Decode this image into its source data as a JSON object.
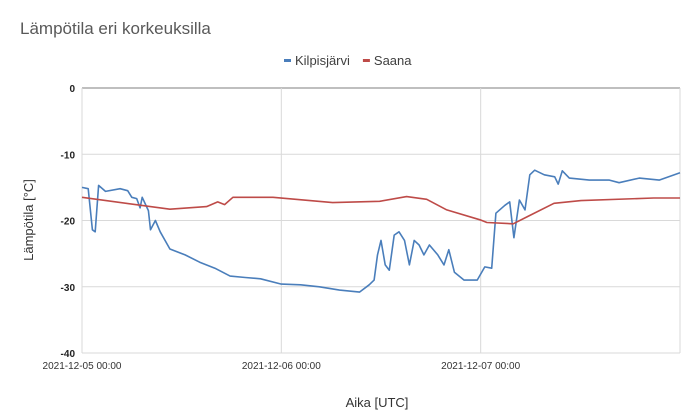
{
  "chart_data": {
    "type": "line",
    "title": "Lämpötila eri korkeuksilla",
    "xlabel": "Aika [UTC]",
    "ylabel": "Lämpötila [°C]",
    "ylim": [
      -40,
      0
    ],
    "yticks": [
      0,
      -10,
      -20,
      -30,
      -40
    ],
    "xlim": [
      "2021-12-05 00:00",
      "2021-12-08 00:00"
    ],
    "xticks": [
      "2021-12-05 00:00",
      "2021-12-06 00:00",
      "2021-12-07 00:00"
    ],
    "grid": true,
    "legend": "top-center",
    "series": [
      {
        "name": "Kilpisjärvi",
        "color": "#4a7ebb",
        "points": [
          [
            "2021-12-05 00:00",
            -15.0
          ],
          [
            "2021-12-05 00:45",
            -15.2
          ],
          [
            "2021-12-05 01:15",
            -21.4
          ],
          [
            "2021-12-05 01:35",
            -21.7
          ],
          [
            "2021-12-05 02:00",
            -14.7
          ],
          [
            "2021-12-05 02:50",
            -15.6
          ],
          [
            "2021-12-05 04:35",
            -15.2
          ],
          [
            "2021-12-05 05:30",
            -15.5
          ],
          [
            "2021-12-05 06:00",
            -16.5
          ],
          [
            "2021-12-05 06:35",
            -16.7
          ],
          [
            "2021-12-05 07:00",
            -18.1
          ],
          [
            "2021-12-05 07:15",
            -16.5
          ],
          [
            "2021-12-05 08:00",
            -18.5
          ],
          [
            "2021-12-05 08:15",
            -21.4
          ],
          [
            "2021-12-05 08:50",
            -20.0
          ],
          [
            "2021-12-05 09:25",
            -21.7
          ],
          [
            "2021-12-05 10:35",
            -24.3
          ],
          [
            "2021-12-05 12:25",
            -25.2
          ],
          [
            "2021-12-05 14:10",
            -26.3
          ],
          [
            "2021-12-05 16:00",
            -27.2
          ],
          [
            "2021-12-05 17:50",
            -28.4
          ],
          [
            "2021-12-05 19:40",
            -28.6
          ],
          [
            "2021-12-05 21:30",
            -28.8
          ],
          [
            "2021-12-06 00:00",
            -29.6
          ],
          [
            "2021-12-06 02:20",
            -29.7
          ],
          [
            "2021-12-06 04:35",
            -30.0
          ],
          [
            "2021-12-06 07:00",
            -30.5
          ],
          [
            "2021-12-06 09:25",
            -30.8
          ],
          [
            "2021-12-06 10:35",
            -29.7
          ],
          [
            "2021-12-06 11:10",
            -29.0
          ],
          [
            "2021-12-06 11:35",
            -25.2
          ],
          [
            "2021-12-06 12:00",
            -23.0
          ],
          [
            "2021-12-06 12:30",
            -26.7
          ],
          [
            "2021-12-06 13:00",
            -27.5
          ],
          [
            "2021-12-06 13:35",
            -22.2
          ],
          [
            "2021-12-06 14:10",
            -21.7
          ],
          [
            "2021-12-06 14:50",
            -23.0
          ],
          [
            "2021-12-06 15:25",
            -26.7
          ],
          [
            "2021-12-06 16:00",
            -23.0
          ],
          [
            "2021-12-06 16:35",
            -23.7
          ],
          [
            "2021-12-06 17:10",
            -25.2
          ],
          [
            "2021-12-06 17:50",
            -23.7
          ],
          [
            "2021-12-06 18:50",
            -25.2
          ],
          [
            "2021-12-06 19:35",
            -26.7
          ],
          [
            "2021-12-06 20:10",
            -24.4
          ],
          [
            "2021-12-06 20:50",
            -27.8
          ],
          [
            "2021-12-06 22:00",
            -29.0
          ],
          [
            "2021-12-06 23:35",
            -29.0
          ],
          [
            "2021-12-07 00:30",
            -27.0
          ],
          [
            "2021-12-07 01:20",
            -27.2
          ],
          [
            "2021-12-07 01:50",
            -18.9
          ],
          [
            "2021-12-07 02:55",
            -17.7
          ],
          [
            "2021-12-07 03:30",
            -17.2
          ],
          [
            "2021-12-07 04:00",
            -22.6
          ],
          [
            "2021-12-07 04:40",
            -16.9
          ],
          [
            "2021-12-07 05:20",
            -18.4
          ],
          [
            "2021-12-07 05:55",
            -13.1
          ],
          [
            "2021-12-07 06:30",
            -12.4
          ],
          [
            "2021-12-07 07:40",
            -13.1
          ],
          [
            "2021-12-07 08:55",
            -13.4
          ],
          [
            "2021-12-07 09:20",
            -14.5
          ],
          [
            "2021-12-07 09:50",
            -12.5
          ],
          [
            "2021-12-07 10:40",
            -13.6
          ],
          [
            "2021-12-07 13:05",
            -13.9
          ],
          [
            "2021-12-07 15:30",
            -13.9
          ],
          [
            "2021-12-07 16:40",
            -14.3
          ],
          [
            "2021-12-07 19:05",
            -13.6
          ],
          [
            "2021-12-07 21:30",
            -13.9
          ],
          [
            "2021-12-08 00:00",
            -12.8
          ]
        ]
      },
      {
        "name": "Saana",
        "color": "#be4b48",
        "points": [
          [
            "2021-12-05 00:00",
            -16.5
          ],
          [
            "2021-12-05 10:35",
            -18.3
          ],
          [
            "2021-12-05 15:00",
            -17.9
          ],
          [
            "2021-12-05 16:20",
            -17.2
          ],
          [
            "2021-12-05 17:10",
            -17.6
          ],
          [
            "2021-12-05 18:10",
            -16.5
          ],
          [
            "2021-12-05 23:00",
            -16.5
          ],
          [
            "2021-12-06 06:10",
            -17.3
          ],
          [
            "2021-12-06 11:50",
            -17.1
          ],
          [
            "2021-12-06 15:05",
            -16.4
          ],
          [
            "2021-12-06 17:30",
            -16.8
          ],
          [
            "2021-12-06 19:55",
            -18.4
          ],
          [
            "2021-12-06 23:55",
            -19.9
          ],
          [
            "2021-12-07 00:45",
            -20.3
          ],
          [
            "2021-12-07 03:55",
            -20.5
          ],
          [
            "2021-12-07 05:40",
            -19.4
          ],
          [
            "2021-12-07 08:50",
            -17.4
          ],
          [
            "2021-12-07 12:05",
            -17.0
          ],
          [
            "2021-12-07 20:50",
            -16.6
          ],
          [
            "2021-12-08 00:00",
            -16.6
          ]
        ]
      }
    ]
  }
}
